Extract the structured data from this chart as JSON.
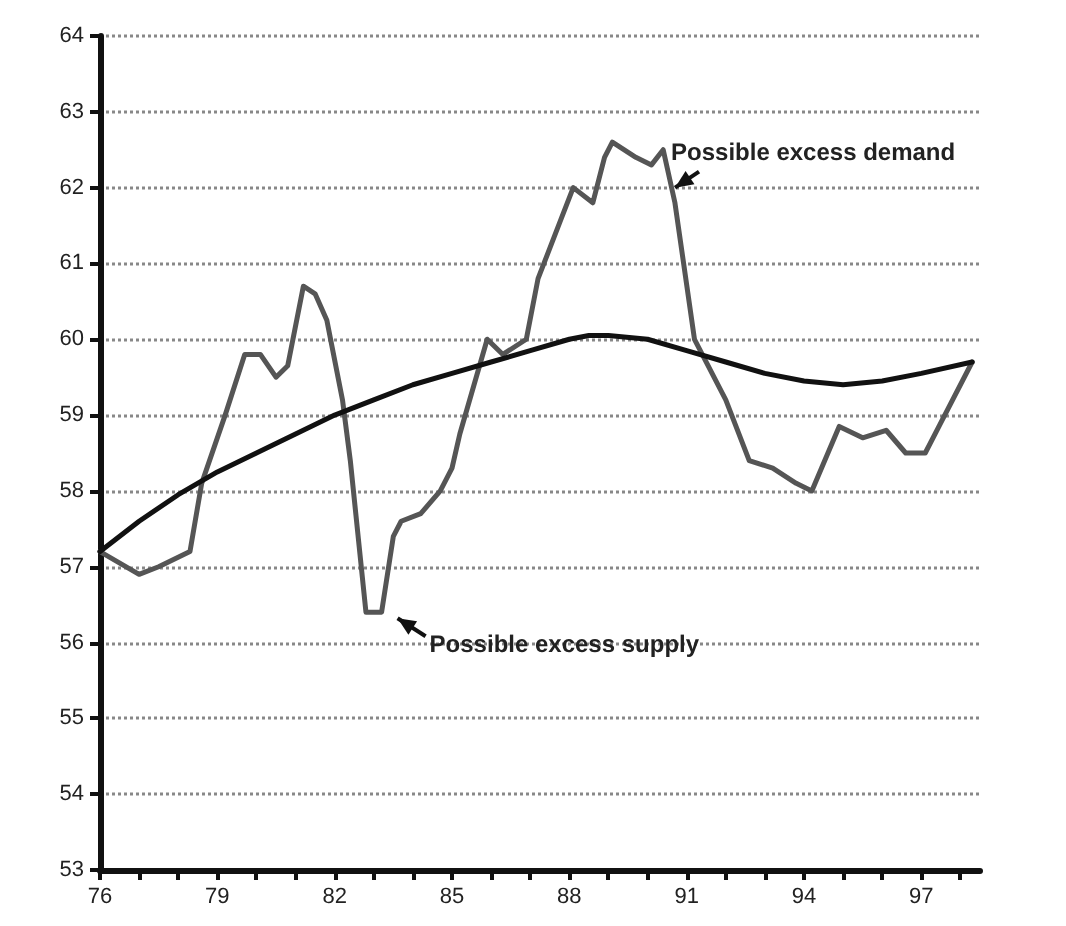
{
  "chart_data": {
    "type": "line",
    "xlim": [
      76,
      98.5
    ],
    "ylim": [
      53,
      64
    ],
    "xticks": [
      76,
      {
        "value": 77,
        "label": null
      },
      {
        "value": 78,
        "label": null
      },
      79,
      {
        "value": 80,
        "label": null
      },
      {
        "value": 81,
        "label": null
      },
      82,
      {
        "value": 83,
        "label": null
      },
      {
        "value": 84,
        "label": null
      },
      85,
      {
        "value": 86,
        "label": null
      },
      {
        "value": 87,
        "label": null
      },
      88,
      {
        "value": 89,
        "label": null
      },
      {
        "value": 90,
        "label": null
      },
      91,
      {
        "value": 92,
        "label": null
      },
      {
        "value": 93,
        "label": null
      },
      94,
      {
        "value": 95,
        "label": null
      },
      {
        "value": 96,
        "label": null
      },
      97,
      {
        "value": 98,
        "label": null
      }
    ],
    "yticks": [
      53,
      54,
      55,
      56,
      57,
      58,
      59,
      60,
      61,
      62,
      63,
      64
    ],
    "grid": "y",
    "marker": "none",
    "line_style": "solid",
    "series": [
      {
        "color": "#555555",
        "x": [
          76,
          77,
          77.5,
          78.3,
          78.6,
          79.2,
          79.7,
          80.1,
          80.5,
          80.8,
          81.2,
          81.5,
          81.8,
          82.2,
          82.4,
          82.8,
          83.2,
          83.5,
          83.7,
          84.2,
          84.7,
          85,
          85.2,
          85.9,
          86.3,
          86.9,
          87.2,
          87.8,
          88.1,
          88.6,
          88.9,
          89.1,
          89.7,
          90.1,
          90.4,
          90.7,
          91.2,
          92,
          92.6,
          93.2,
          93.8,
          94.2,
          94.9,
          95.5,
          96.1,
          96.6,
          97.1,
          97.5,
          98.3
        ],
        "values": [
          57.2,
          56.9,
          57,
          57.2,
          58.1,
          59,
          59.8,
          59.8,
          59.5,
          59.65,
          60.7,
          60.6,
          60.25,
          59.2,
          58.4,
          56.4,
          56.4,
          57.4,
          57.6,
          57.7,
          58,
          58.3,
          58.75,
          60,
          59.8,
          60,
          60.8,
          61.6,
          62,
          61.8,
          62.4,
          62.6,
          62.4,
          62.3,
          62.5,
          61.8,
          60,
          59.2,
          58.4,
          58.3,
          58.1,
          58,
          58.85,
          58.7,
          58.8,
          58.5,
          58.5,
          58.9,
          59.7
        ]
      },
      {
        "color": "#111111",
        "x": [
          76,
          77,
          78,
          79,
          80,
          81,
          82,
          83,
          84,
          85,
          86,
          87,
          88,
          88.5,
          89,
          90,
          91,
          92,
          93,
          94,
          95,
          96,
          97,
          98.3
        ],
        "values": [
          57.2,
          57.6,
          57.95,
          58.25,
          58.5,
          58.75,
          59,
          59.2,
          59.4,
          59.55,
          59.7,
          59.85,
          60,
          60.05,
          60.05,
          60,
          59.85,
          59.7,
          59.55,
          59.45,
          59.4,
          59.45,
          59.55,
          59.7
        ]
      }
    ],
    "annotations": [
      {
        "text": "Possible excess demand",
        "x": 90.6,
        "y": 62
      },
      {
        "text": "Possible excess supply",
        "x": 83.2,
        "y": 56.4
      }
    ]
  }
}
